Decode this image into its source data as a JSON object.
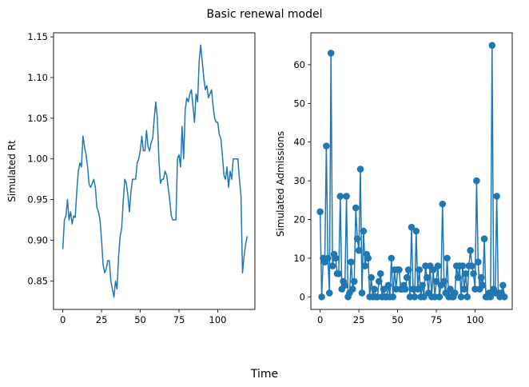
{
  "figure": {
    "title": "Basic renewal model",
    "xlabel": "Time"
  },
  "chart_data": [
    {
      "type": "line",
      "title": "",
      "xlabel": "",
      "ylabel": "Simulated Rt",
      "xlim": [
        -6,
        124
      ],
      "ylim": [
        0.815,
        1.155
      ],
      "xticks": [
        0,
        25,
        50,
        75,
        100
      ],
      "yticks": [
        0.85,
        0.9,
        0.95,
        1.0,
        1.05,
        1.1,
        1.15
      ],
      "ytick_labels": [
        "0.85",
        "0.90",
        "0.95",
        "1.00",
        "1.05",
        "1.10",
        "1.15"
      ],
      "color": "#1f77b4",
      "grid": false,
      "x": [
        0,
        1,
        2,
        3,
        4,
        5,
        6,
        7,
        8,
        9,
        10,
        11,
        12,
        13,
        14,
        15,
        16,
        17,
        18,
        19,
        20,
        21,
        22,
        23,
        24,
        25,
        26,
        27,
        28,
        29,
        30,
        31,
        32,
        33,
        34,
        35,
        36,
        37,
        38,
        39,
        40,
        41,
        42,
        43,
        44,
        45,
        46,
        47,
        48,
        49,
        50,
        51,
        52,
        53,
        54,
        55,
        56,
        57,
        58,
        59,
        60,
        61,
        62,
        63,
        64,
        65,
        66,
        67,
        68,
        69,
        70,
        71,
        72,
        73,
        74,
        75,
        76,
        77,
        78,
        79,
        80,
        81,
        82,
        83,
        84,
        85,
        86,
        87,
        88,
        89,
        90,
        91,
        92,
        93,
        94,
        95,
        96,
        97,
        98,
        99,
        100,
        101,
        102,
        103,
        104,
        105,
        106,
        107,
        108,
        109,
        110,
        111,
        112,
        113,
        114,
        115,
        116,
        117,
        118,
        119
      ],
      "y": [
        0.889,
        0.925,
        0.93,
        0.95,
        0.925,
        0.935,
        0.92,
        0.93,
        0.928,
        0.96,
        0.985,
        0.995,
        0.99,
        1.028,
        1.015,
        1.005,
        0.99,
        0.968,
        0.965,
        0.97,
        0.975,
        0.965,
        0.94,
        0.935,
        0.925,
        0.9,
        0.87,
        0.86,
        0.865,
        0.875,
        0.875,
        0.85,
        0.84,
        0.83,
        0.85,
        0.84,
        0.88,
        0.905,
        0.915,
        0.948,
        0.975,
        0.97,
        0.955,
        0.935,
        0.96,
        0.975,
        0.975,
        0.975,
        0.995,
        1.0,
        1.01,
        1.028,
        1.01,
        1.01,
        1.035,
        1.015,
        1.01,
        1.02,
        1.025,
        1.05,
        1.07,
        1.05,
        1.0,
        0.97,
        0.975,
        0.975,
        0.985,
        0.98,
        0.965,
        0.95,
        0.93,
        0.925,
        0.925,
        0.925,
        1.0,
        1.005,
        0.99,
        1.04,
        1.0,
        1.06,
        1.075,
        1.07,
        1.08,
        1.085,
        1.065,
        1.045,
        1.08,
        1.07,
        1.12,
        1.14,
        1.12,
        1.1,
        1.085,
        1.09,
        1.075,
        1.08,
        1.085,
        1.065,
        1.05,
        1.045,
        1.045,
        1.03,
        1.025,
        1.005,
        0.98,
        0.975,
        0.99,
        0.965,
        0.985,
        0.975,
        1.0,
        1.0,
        1.0,
        1.0,
        0.975,
        0.955,
        0.86,
        0.88,
        0.895,
        0.905
      ]
    },
    {
      "type": "scatter",
      "title": "",
      "xlabel": "",
      "ylabel": "Simulated Admissions",
      "xlim": [
        -6,
        124
      ],
      "ylim": [
        -3.25,
        68.25
      ],
      "xticks": [
        0,
        25,
        50,
        75,
        100
      ],
      "yticks": [
        0,
        10,
        20,
        30,
        40,
        50,
        60
      ],
      "ytick_labels": [
        "0",
        "10",
        "20",
        "30",
        "40",
        "50",
        "60"
      ],
      "color": "#1f77b4",
      "marker": "circle",
      "connected": true,
      "grid": false,
      "x": [
        0,
        1,
        2,
        3,
        4,
        5,
        6,
        7,
        8,
        9,
        10,
        11,
        12,
        13,
        14,
        15,
        16,
        17,
        18,
        19,
        20,
        21,
        22,
        23,
        24,
        25,
        26,
        27,
        28,
        29,
        30,
        31,
        32,
        33,
        34,
        35,
        36,
        37,
        38,
        39,
        40,
        41,
        42,
        43,
        44,
        45,
        46,
        47,
        48,
        49,
        50,
        51,
        52,
        53,
        54,
        55,
        56,
        57,
        58,
        59,
        60,
        61,
        62,
        63,
        64,
        65,
        66,
        67,
        68,
        69,
        70,
        71,
        72,
        73,
        74,
        75,
        76,
        77,
        78,
        79,
        80,
        81,
        82,
        83,
        84,
        85,
        86,
        87,
        88,
        89,
        90,
        91,
        92,
        93,
        94,
        95,
        96,
        97,
        98,
        99,
        100,
        101,
        102,
        103,
        104,
        105,
        106,
        107,
        108,
        109,
        110,
        111,
        112,
        113,
        114,
        115,
        116,
        117,
        118,
        119
      ],
      "y": [
        22,
        0,
        10,
        9,
        39,
        10,
        1,
        63,
        8,
        11,
        10,
        6,
        6,
        26,
        2,
        4,
        3,
        26,
        0,
        1,
        9,
        2,
        4,
        23,
        15,
        12,
        33,
        1,
        17,
        8,
        11,
        10,
        0,
        5,
        0,
        2,
        0,
        0,
        4,
        6,
        0,
        2,
        0,
        0,
        3,
        0,
        10,
        0,
        7,
        2,
        7,
        7,
        2,
        2,
        3,
        2,
        5,
        7,
        0,
        18,
        2,
        0,
        17,
        2,
        7,
        0,
        3,
        0,
        8,
        5,
        1,
        8,
        0,
        7,
        0,
        4,
        8,
        0,
        3,
        24,
        4,
        1,
        10,
        0,
        2,
        0,
        0,
        1,
        8,
        5,
        8,
        0,
        8,
        2,
        6,
        0,
        8,
        12,
        8,
        6,
        2,
        30,
        9,
        2,
        5,
        3,
        15,
        0,
        0,
        1,
        0,
        65,
        2,
        1,
        26,
        1,
        0,
        1,
        3,
        0
      ]
    }
  ]
}
